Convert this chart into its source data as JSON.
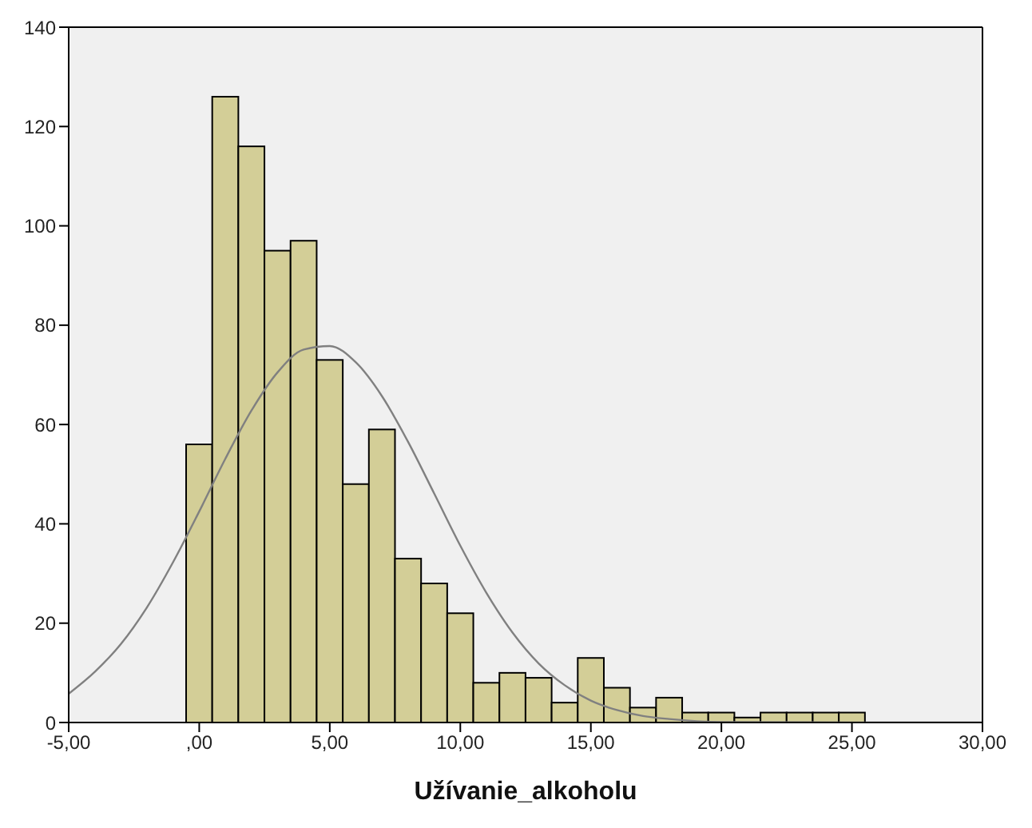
{
  "chart_data": {
    "type": "histogram",
    "xlabel": "Užívanie_alkoholu",
    "bins": [
      -0.5,
      0.5,
      1.5,
      2.5,
      3.5,
      4.5,
      5.5,
      6.5,
      7.5,
      8.5,
      9.5,
      10.5,
      11.5,
      12.5,
      13.5,
      14.5,
      15.5,
      16.5,
      17.5,
      18.5,
      19.5,
      20.5,
      21.5,
      22.5,
      23.5,
      24.5,
      25.5
    ],
    "values": [
      56,
      126,
      116,
      95,
      97,
      73,
      48,
      59,
      33,
      28,
      22,
      8,
      10,
      9,
      4,
      13,
      7,
      3,
      5,
      2,
      2,
      1,
      2,
      2,
      2,
      2
    ],
    "color": "#d3ce97",
    "series": [
      {
        "type": "line",
        "color": "#808080",
        "x": [
          -5,
          -4,
          -3,
          -2,
          -1,
          0,
          1,
          2,
          3,
          4,
          5,
          6,
          7,
          8,
          9,
          10,
          11,
          12,
          13,
          14,
          15,
          16,
          17,
          18,
          20,
          25,
          30
        ],
        "values": [
          5.8,
          10.2,
          15.8,
          23.2,
          32.3,
          42.5,
          53.1,
          62.8,
          70.5,
          75.1,
          75.8,
          72.5,
          65.7,
          56.5,
          46.1,
          35.6,
          26.1,
          18.1,
          11.9,
          7.5,
          4.4,
          2.5,
          1.3,
          0.7,
          0.1,
          0,
          0
        ]
      }
    ],
    "xlim": [
      -5,
      30
    ],
    "xticks": [
      {
        "value": -5,
        "label": "-5,00"
      },
      {
        "value": 0,
        "label": ",00"
      },
      {
        "value": 5,
        "label": "5,00"
      },
      {
        "value": 10,
        "label": "10,00"
      },
      {
        "value": 15,
        "label": "15,00"
      },
      {
        "value": 20,
        "label": "20,00"
      },
      {
        "value": 25,
        "label": "25,00"
      },
      {
        "value": 30,
        "label": "30,00"
      }
    ],
    "ylim": [
      0,
      140
    ],
    "yticks": [
      0,
      20,
      40,
      60,
      80,
      100,
      120,
      140
    ]
  }
}
